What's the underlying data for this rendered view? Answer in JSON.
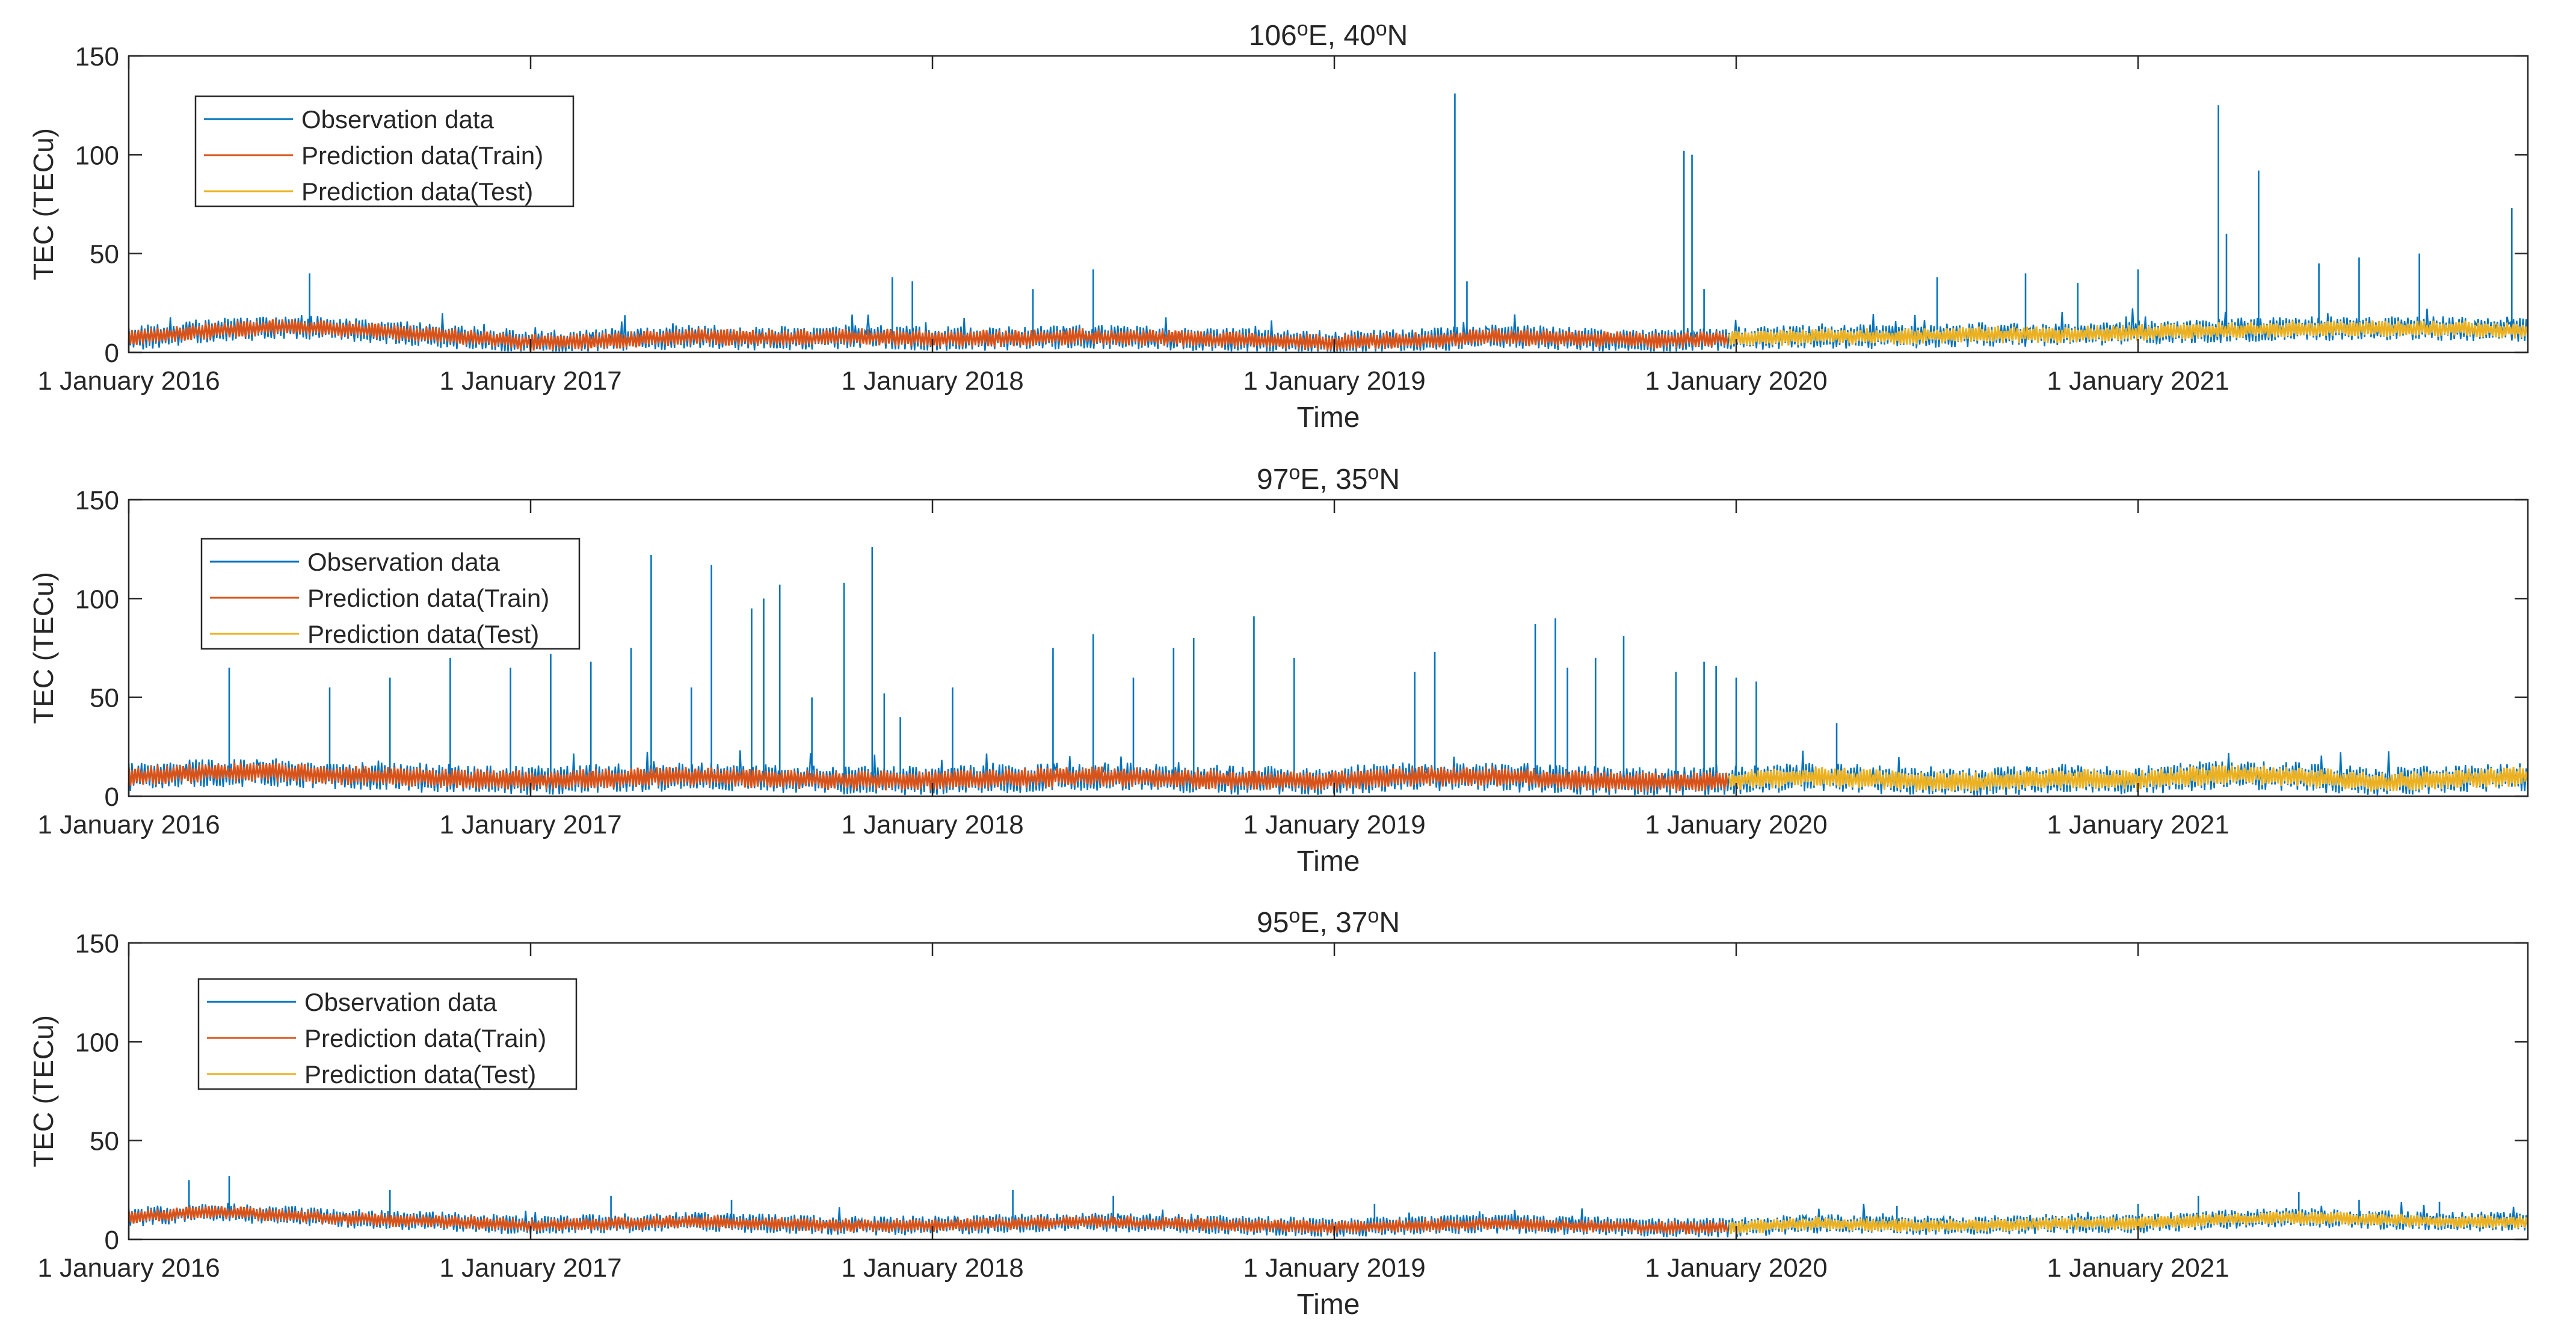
{
  "figure": {
    "xlabel": "Time",
    "ylabel": "TEC (TECu)",
    "yticks": [
      0,
      50,
      100,
      150
    ],
    "ylim": [
      0,
      150
    ],
    "xticks": [
      "1 January 2016",
      "1 January 2017",
      "1 January 2018",
      "1 January 2019",
      "1 January 2020",
      "1 January 2021"
    ],
    "legend_labels": [
      "Observation data",
      "Prediction data(Train)",
      "Prediction data(Test)"
    ],
    "colors": {
      "observation": "#0072BD",
      "train": "#D95319",
      "test": "#EDB120",
      "axes": "#262626"
    }
  },
  "chart_data": [
    {
      "type": "line",
      "title": {
        "lon": "106",
        "lat": "40",
        "lon_dir": "E",
        "lat_dir": "N",
        "unit": "o"
      },
      "xlabel": "Time",
      "ylabel": "TEC (TECu)",
      "ylim": [
        0,
        150
      ],
      "xlim": [
        2016.0,
        2021.97
      ],
      "train_test_split": 2019.98,
      "legend_position": "top-left",
      "baseline": {
        "x": [
          2016.0,
          2016.2,
          2016.4,
          2016.6,
          2016.8,
          2017.0,
          2017.2,
          2017.4,
          2017.6,
          2017.8,
          2018.0,
          2018.2,
          2018.4,
          2018.6,
          2018.8,
          2019.0,
          2019.2,
          2019.4,
          2019.6,
          2019.8,
          2020.0,
          2020.2,
          2020.4,
          2020.6,
          2020.8,
          2021.0,
          2021.2,
          2021.4,
          2021.6,
          2021.8,
          2021.97
        ],
        "y": [
          7,
          11,
          13,
          11,
          8,
          5,
          6,
          8,
          7,
          8,
          7,
          7,
          8,
          7,
          6,
          5,
          6,
          8,
          7,
          6,
          7,
          8,
          8,
          9,
          9,
          10,
          11,
          12,
          12,
          12,
          11
        ],
        "amplitude": 5
      },
      "spikes": {
        "x": [
          2016.45,
          2017.9,
          2017.95,
          2018.25,
          2018.4,
          2019.3,
          2019.33,
          2019.87,
          2019.89,
          2019.92,
          2020.5,
          2020.72,
          2020.85,
          2021.0,
          2021.2,
          2021.22,
          2021.3,
          2021.45,
          2021.55,
          2021.7,
          2021.93
        ],
        "y": [
          40,
          38,
          36,
          32,
          42,
          131,
          36,
          102,
          100,
          32,
          38,
          40,
          35,
          42,
          125,
          60,
          92,
          45,
          48,
          50,
          73
        ]
      }
    },
    {
      "type": "line",
      "title": {
        "lon": "97",
        "lat": "35",
        "lon_dir": "E",
        "lat_dir": "N",
        "unit": "o"
      },
      "xlabel": "Time",
      "ylabel": "TEC (TECu)",
      "ylim": [
        0,
        150
      ],
      "xlim": [
        2016.0,
        2021.97
      ],
      "train_test_split": 2019.98,
      "legend_position": "top-left",
      "baseline": {
        "x": [
          2016.0,
          2016.2,
          2016.4,
          2016.6,
          2016.8,
          2017.0,
          2017.2,
          2017.4,
          2017.6,
          2017.8,
          2018.0,
          2018.2,
          2018.4,
          2018.6,
          2018.8,
          2019.0,
          2019.2,
          2019.4,
          2019.6,
          2019.8,
          2020.0,
          2020.2,
          2020.4,
          2020.6,
          2020.8,
          2021.0,
          2021.2,
          2021.4,
          2021.6,
          2021.8,
          2021.97
        ],
        "y": [
          10,
          12,
          12,
          10,
          9,
          8,
          9,
          10,
          9,
          8,
          8,
          9,
          10,
          9,
          8,
          8,
          10,
          10,
          8,
          7,
          8,
          10,
          8,
          7,
          9,
          8,
          11,
          10,
          7,
          9,
          10
        ],
        "amplitude": 6
      },
      "spikes": {
        "x": [
          2016.25,
          2016.5,
          2016.65,
          2016.8,
          2016.95,
          2017.05,
          2017.15,
          2017.25,
          2017.3,
          2017.4,
          2017.45,
          2017.55,
          2017.58,
          2017.62,
          2017.7,
          2017.78,
          2017.85,
          2017.88,
          2017.92,
          2018.05,
          2018.3,
          2018.4,
          2018.5,
          2018.6,
          2018.65,
          2018.8,
          2018.9,
          2019.2,
          2019.25,
          2019.5,
          2019.55,
          2019.58,
          2019.65,
          2019.72,
          2019.85,
          2019.92,
          2019.95,
          2020.0,
          2020.05,
          2020.25
        ],
        "y": [
          65,
          55,
          60,
          70,
          65,
          72,
          68,
          75,
          122,
          55,
          117,
          95,
          100,
          107,
          50,
          108,
          126,
          52,
          40,
          55,
          75,
          82,
          60,
          75,
          80,
          91,
          70,
          63,
          73,
          87,
          90,
          65,
          70,
          81,
          63,
          68,
          66,
          60,
          58,
          37
        ]
      }
    },
    {
      "type": "line",
      "title": {
        "lon": "95",
        "lat": "37",
        "lon_dir": "E",
        "lat_dir": "N",
        "unit": "o"
      },
      "xlabel": "Time",
      "ylabel": "TEC (TECu)",
      "ylim": [
        0,
        150
      ],
      "xlim": [
        2016.0,
        2021.97
      ],
      "train_test_split": 2019.98,
      "legend_position": "top-left",
      "baseline": {
        "x": [
          2016.0,
          2016.2,
          2016.4,
          2016.6,
          2016.8,
          2017.0,
          2017.2,
          2017.4,
          2017.6,
          2017.8,
          2018.0,
          2018.2,
          2018.4,
          2018.6,
          2018.8,
          2019.0,
          2019.2,
          2019.4,
          2019.6,
          2019.8,
          2020.0,
          2020.2,
          2020.4,
          2020.6,
          2020.8,
          2021.0,
          2021.2,
          2021.4,
          2021.6,
          2021.8,
          2021.97
        ],
        "y": [
          11,
          14,
          12,
          10,
          9,
          7,
          8,
          9,
          8,
          7,
          7,
          8,
          9,
          8,
          7,
          6,
          7,
          8,
          7,
          6,
          6,
          8,
          7,
          7,
          8,
          8,
          10,
          11,
          10,
          9,
          9
        ],
        "amplitude": 4
      },
      "spikes": {
        "x": [
          2016.15,
          2016.25,
          2016.65,
          2017.2,
          2017.5,
          2018.2,
          2018.45,
          2019.1,
          2020.4,
          2021.0,
          2021.15,
          2021.4,
          2021.55,
          2021.75
        ],
        "y": [
          30,
          32,
          25,
          22,
          20,
          25,
          22,
          18,
          17,
          18,
          22,
          24,
          20,
          19
        ]
      }
    }
  ]
}
